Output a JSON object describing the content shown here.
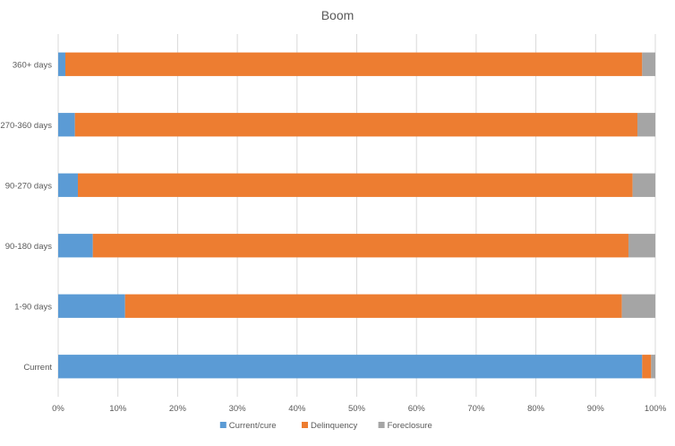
{
  "chart_data": {
    "type": "bar",
    "orientation": "horizontal",
    "stacked": "percent",
    "title": "Boom",
    "xlabel": "",
    "ylabel": "",
    "xlim": [
      0,
      100
    ],
    "x_ticks": [
      "0%",
      "10%",
      "20%",
      "30%",
      "40%",
      "50%",
      "60%",
      "70%",
      "80%",
      "90%",
      "100%"
    ],
    "categories": [
      "360+ days",
      "270-360 days",
      "90-270 days",
      "90-180 days",
      "1-90 days",
      "Current"
    ],
    "series": [
      {
        "name": "Current/cure",
        "color": "#5B9BD5",
        "values": [
          1.2,
          2.8,
          3.3,
          5.8,
          11.2,
          97.8
        ]
      },
      {
        "name": "Delinquency",
        "color": "#ED7D31",
        "values": [
          96.6,
          94.2,
          92.9,
          89.7,
          83.2,
          1.5
        ]
      },
      {
        "name": "Foreclosure",
        "color": "#A5A5A5",
        "values": [
          2.2,
          3.0,
          3.8,
          4.5,
          5.6,
          0.7
        ]
      }
    ],
    "grid": true,
    "legend_position": "bottom"
  }
}
